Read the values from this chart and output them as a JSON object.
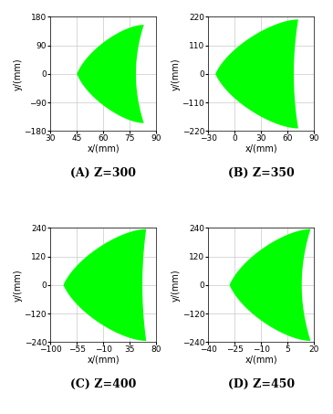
{
  "subplots": [
    {
      "label": "(A) Z=300",
      "xlim": [
        30,
        90
      ],
      "ylim": [
        -180,
        180
      ],
      "xticks": [
        30,
        45,
        60,
        75,
        90
      ],
      "yticks": [
        -180,
        -90,
        0,
        90,
        180
      ],
      "xlabel": "x/(mm)",
      "ylabel": "y/(mm)",
      "tip_x": 45.0,
      "tip_y": 0.0,
      "wide_x": 83.0,
      "wide_top_y": 155.0,
      "wide_bot_y": -155.0,
      "right_concave_x": 74.0,
      "upper_ctrl_x": 75.0,
      "upper_ctrl_y": 155.0,
      "lower_ctrl_x": 75.0,
      "lower_ctrl_y": -155.0
    },
    {
      "label": "(B) Z=350",
      "xlim": [
        -30,
        90
      ],
      "ylim": [
        -220,
        220
      ],
      "xticks": [
        -30,
        0,
        30,
        60,
        90
      ],
      "yticks": [
        -220,
        -110,
        0,
        110,
        220
      ],
      "xlabel": "x/(mm)",
      "ylabel": "y/(mm)",
      "tip_x": -22.0,
      "tip_y": 0.0,
      "wide_x": 72.0,
      "wide_top_y": 210.0,
      "wide_bot_y": -210.0,
      "right_concave_x": 62.0,
      "upper_ctrl_x": 55.0,
      "upper_ctrl_y": 210.0,
      "lower_ctrl_x": 55.0,
      "lower_ctrl_y": -210.0
    },
    {
      "label": "(C) Z=400",
      "xlim": [
        -100,
        80
      ],
      "ylim": [
        -240,
        240
      ],
      "xticks": [
        -100,
        -55,
        -10,
        35,
        80
      ],
      "yticks": [
        -240,
        -120,
        0,
        120,
        240
      ],
      "xlabel": "x/(mm)",
      "ylabel": "y/(mm)",
      "tip_x": -78.0,
      "tip_y": 0.0,
      "wide_x": 63.0,
      "wide_top_y": 235.0,
      "wide_bot_y": -235.0,
      "right_concave_x": 50.0,
      "upper_ctrl_x": 30.0,
      "upper_ctrl_y": 235.0,
      "lower_ctrl_x": 30.0,
      "lower_ctrl_y": -235.0
    },
    {
      "label": "(D) Z=450",
      "xlim": [
        -40,
        20
      ],
      "ylim": [
        -240,
        240
      ],
      "xticks": [
        -40,
        -25,
        -10,
        5,
        20
      ],
      "yticks": [
        -240,
        -120,
        0,
        120,
        240
      ],
      "xlabel": "x/(mm)",
      "ylabel": "y/(mm)",
      "tip_x": -28.0,
      "tip_y": 0.0,
      "wide_x": 18.0,
      "wide_top_y": 235.0,
      "wide_bot_y": -235.0,
      "right_concave_x": 8.0,
      "upper_ctrl_x": 5.0,
      "upper_ctrl_y": 235.0,
      "lower_ctrl_x": 5.0,
      "lower_ctrl_y": -235.0
    }
  ],
  "fill_color": "#00FF00",
  "background_color": "#ffffff",
  "grid_color": "#c8c8c8",
  "label_fontsize": 7,
  "tick_fontsize": 6.5,
  "caption_fontsize": 9
}
